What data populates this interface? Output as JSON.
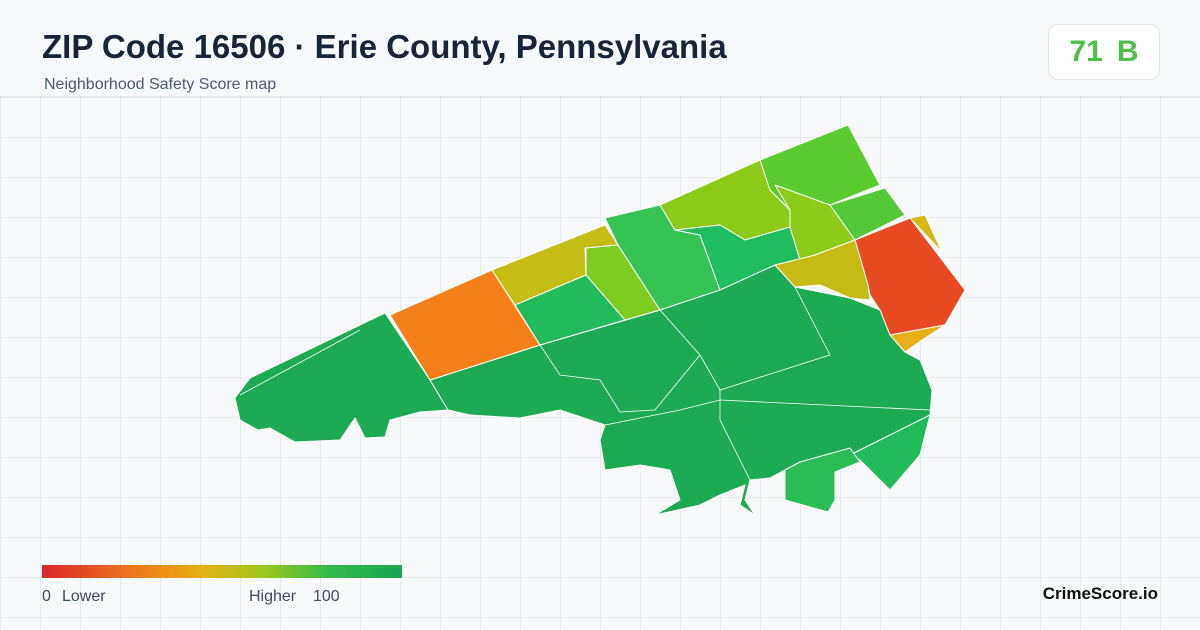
{
  "header": {
    "title": "ZIP Code 16506 · Erie County, Pennsylvania",
    "subtitle": "Neighborhood Safety Score map"
  },
  "score": {
    "value": 71,
    "grade": "B"
  },
  "legend": {
    "min": 0,
    "min_label": "Lower",
    "max_label": "Higher",
    "max": 100
  },
  "brand": "CrimeScore.io"
}
